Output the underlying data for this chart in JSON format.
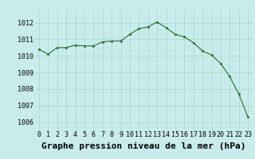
{
  "x": [
    0,
    1,
    2,
    3,
    4,
    5,
    6,
    7,
    8,
    9,
    10,
    11,
    12,
    13,
    14,
    15,
    16,
    17,
    18,
    19,
    20,
    21,
    22,
    23
  ],
  "y": [
    1010.4,
    1010.1,
    1010.5,
    1010.5,
    1010.65,
    1010.6,
    1010.6,
    1010.85,
    1010.9,
    1010.9,
    1011.3,
    1011.65,
    1011.75,
    1012.05,
    1011.7,
    1011.3,
    1011.15,
    1010.8,
    1010.3,
    1010.05,
    1009.55,
    1008.75,
    1007.7,
    1006.3
  ],
  "line_color": "#2d6a2d",
  "marker_color": "#2d6a2d",
  "bg_color": "#c8ecea",
  "grid_color": "#aad4d0",
  "xlabel": "Graphe pression niveau de la mer (hPa)",
  "xlabel_fontsize": 8,
  "ylabel_ticks": [
    1006,
    1007,
    1008,
    1009,
    1010,
    1011,
    1012
  ],
  "xlim": [
    -0.5,
    23.5
  ],
  "ylim": [
    1005.5,
    1012.8
  ],
  "xtick_labels": [
    "0",
    "1",
    "2",
    "3",
    "4",
    "5",
    "6",
    "7",
    "8",
    "9",
    "10",
    "11",
    "12",
    "13",
    "14",
    "15",
    "16",
    "17",
    "18",
    "19",
    "20",
    "21",
    "22",
    "23"
  ],
  "tick_fontsize": 6,
  "linewidth": 0.8,
  "markersize": 2.0
}
